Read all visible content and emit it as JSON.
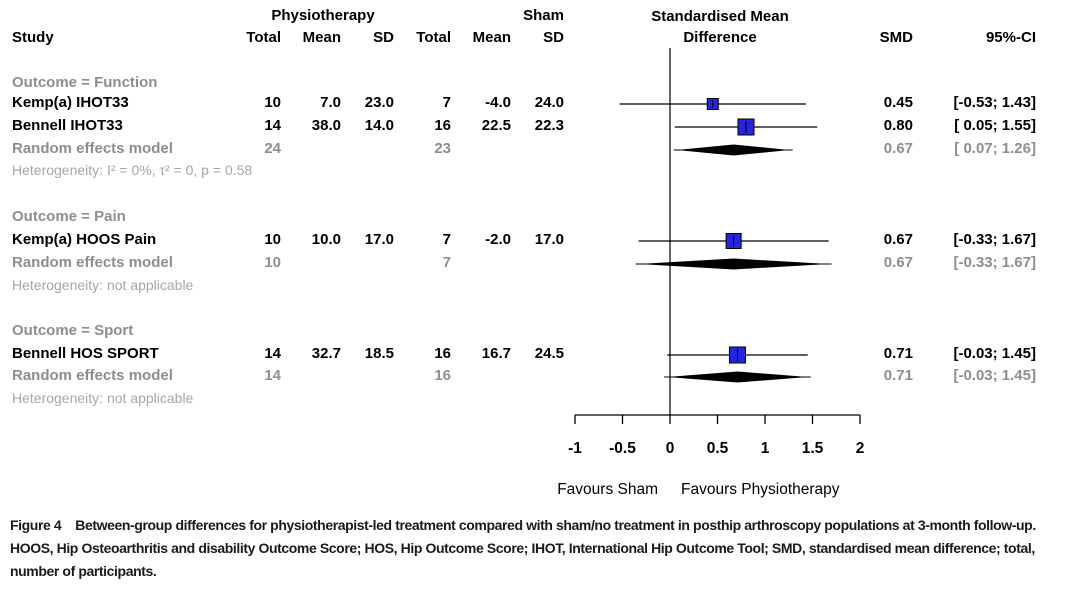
{
  "header": {
    "study": "Study",
    "group1": "Physiotherapy",
    "group2": "Sham",
    "sub": [
      "Total",
      "Mean",
      "SD",
      "Total",
      "Mean",
      "SD"
    ],
    "effect": [
      "Standardised Mean",
      "Difference"
    ],
    "smd": "SMD",
    "ci": "95%-CI"
  },
  "chart_data": {
    "type": "forest",
    "effect_measure": "Standardised Mean Difference",
    "x_axis": {
      "range": [
        -1,
        2
      ],
      "ticks": [
        -1,
        -0.5,
        0,
        0.5,
        1,
        1.5,
        2
      ],
      "tick_labels": [
        "-1",
        "-0.5",
        "0",
        "0.5",
        "1",
        "1.5",
        "2"
      ],
      "zero_line": 0,
      "left_label": "Favours Sham",
      "right_label": "Favours Physiotherapy"
    },
    "groups": [
      {
        "label": "Outcome = Function",
        "studies": [
          {
            "name": "Kemp(a) IHOT33",
            "treat_total": "10",
            "treat_mean": "7.0",
            "treat_sd": "23.0",
            "sham_total": "7",
            "sham_mean": "-4.0",
            "sham_sd": "24.0",
            "smd": "0.45",
            "ci_text": "[-0.53; 1.43]",
            "est": 0.45,
            "lo": -0.53,
            "hi": 1.43,
            "marker_size": 11
          },
          {
            "name": "Bennell IHOT33",
            "treat_total": "14",
            "treat_mean": "38.0",
            "treat_sd": "14.0",
            "sham_total": "16",
            "sham_mean": "22.5",
            "sham_sd": "22.3",
            "smd": "0.80",
            "ci_text": "[ 0.05; 1.55]",
            "est": 0.8,
            "lo": 0.05,
            "hi": 1.55,
            "marker_size": 16
          }
        ],
        "pooled": {
          "name": "Random effects model",
          "treat_total": "24",
          "sham_total": "23",
          "smd": "0.67",
          "ci_text": "[ 0.07; 1.26]",
          "est": 0.67,
          "lo": 0.07,
          "hi": 1.26
        },
        "heterogeneity": "Heterogeneity: I² = 0%, τ² = 0, p = 0.58"
      },
      {
        "label": "Outcome = Pain",
        "studies": [
          {
            "name": "Kemp(a) HOOS Pain",
            "treat_total": "10",
            "treat_mean": "10.0",
            "treat_sd": "17.0",
            "sham_total": "7",
            "sham_mean": "-2.0",
            "sham_sd": "17.0",
            "smd": "0.67",
            "ci_text": "[-0.33; 1.67]",
            "est": 0.67,
            "lo": -0.33,
            "hi": 1.67,
            "marker_size": 15
          }
        ],
        "pooled": {
          "name": "Random effects model",
          "treat_total": "10",
          "sham_total": "7",
          "smd": "0.67",
          "ci_text": "[-0.33; 1.67]",
          "est": 0.67,
          "lo": -0.33,
          "hi": 1.67
        },
        "heterogeneity": "Heterogeneity: not applicable"
      },
      {
        "label": "Outcome = Sport",
        "studies": [
          {
            "name": "Bennell HOS SPORT",
            "treat_total": "14",
            "treat_mean": "32.7",
            "treat_sd": "18.5",
            "sham_total": "16",
            "sham_mean": "16.7",
            "sham_sd": "24.5",
            "smd": "0.71",
            "ci_text": "[-0.03; 1.45]",
            "est": 0.71,
            "lo": -0.03,
            "hi": 1.45,
            "marker_size": 16
          }
        ],
        "pooled": {
          "name": "Random effects model",
          "treat_total": "14",
          "sham_total": "16",
          "smd": "0.71",
          "ci_text": "[-0.03; 1.45]",
          "est": 0.71,
          "lo": -0.03,
          "hi": 1.45
        },
        "heterogeneity": "Heterogeneity: not applicable"
      }
    ]
  },
  "caption": {
    "tag": "Figure 4",
    "text": "Between-group differences for physiotherapist-led treatment compared with sham/no treatment in posthip arthroscopy populations at 3-month follow-up. HOOS, Hip Osteoarthritis and disability Outcome Score; HOS, Hip Outcome Score; IHOT, International Hip Outcome Tool; SMD, standardised mean difference; total, number of participants."
  },
  "colors": {
    "square_fill": "#2525e0",
    "square_stroke": "#000000",
    "line": "#000000",
    "group_gray": "#8e8e8e",
    "het_gray": "#a6a6a6"
  }
}
